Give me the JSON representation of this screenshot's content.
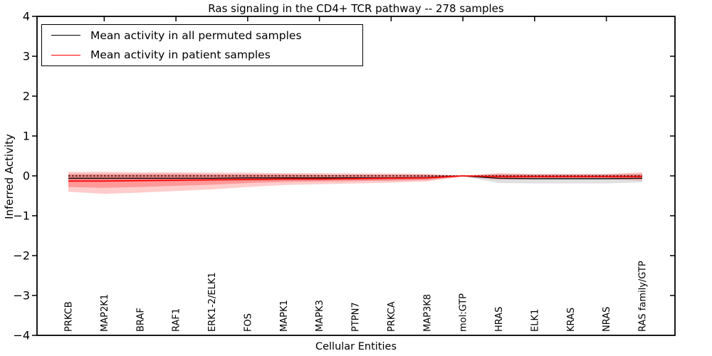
{
  "title": "Ras signaling in the CD4+ TCR pathway -- 278 samples",
  "xlabel": "Cellular Entities",
  "ylabel": "Inferred Activity",
  "legend": [
    {
      "label": "Mean activity in all permuted samples",
      "color": "#000000",
      "line_height": 1.4
    },
    {
      "label": "Mean activity in patient samples",
      "color": "#ff0000",
      "line_height": 1.7
    }
  ],
  "colors": {
    "axis": "#000000",
    "permuted_band": "#999999",
    "patient_band": "#ff0000",
    "permuted_line": "#000000",
    "patient_line": "#ff0000",
    "zero_line": "#000000"
  },
  "chart_data": {
    "type": "line",
    "title": "Ras signaling in the CD4+ TCR pathway -- 278 samples",
    "xlabel": "Cellular Entities",
    "ylabel": "Inferred Activity",
    "ylim": [
      -4,
      4
    ],
    "yticks": [
      4,
      3,
      2,
      1,
      0,
      -1,
      -2,
      -3,
      -4
    ],
    "ytick_labels": [
      "4",
      "3",
      "2",
      "1",
      "0",
      "−1",
      "−2",
      "−3",
      "−4"
    ],
    "grid": false,
    "legend_position": "upper left",
    "categories": [
      "PRKCB",
      "MAP2K1",
      "BRAF",
      "RAF1",
      "ERK1-2/ELK1",
      "FOS",
      "MAPK1",
      "MAPK3",
      "PTPN7",
      "PRKCA",
      "MAP3K8",
      "mol:GTP",
      "HRAS",
      "ELK1",
      "KRAS",
      "NRAS",
      "RAS family/GTP"
    ],
    "series": [
      {
        "name": "zero-reference",
        "style": "dashed",
        "color": "#000000",
        "width": 1.2,
        "values": [
          0,
          0,
          0,
          0,
          0,
          0,
          0,
          0,
          0,
          0,
          0,
          0,
          0,
          0,
          0,
          0,
          0
        ]
      },
      {
        "name": "Mean activity in all permuted samples",
        "style": "solid",
        "color": "#000000",
        "width": 1.3,
        "values": [
          -0.06,
          -0.06,
          -0.06,
          -0.06,
          -0.06,
          -0.05,
          -0.05,
          -0.05,
          -0.05,
          -0.05,
          -0.04,
          0.0,
          -0.06,
          -0.07,
          -0.07,
          -0.07,
          -0.06
        ]
      },
      {
        "name": "Mean activity in patient samples",
        "style": "solid",
        "color": "#ff0000",
        "width": 1.6,
        "values": [
          -0.13,
          -0.13,
          -0.12,
          -0.11,
          -0.1,
          -0.09,
          -0.08,
          -0.08,
          -0.07,
          -0.06,
          -0.05,
          0.0,
          -0.02,
          -0.02,
          -0.02,
          -0.02,
          -0.02
        ]
      }
    ],
    "bands": [
      {
        "name": "permuted-samples-range",
        "color": "#999999",
        "opacity": 0.3,
        "upper": [
          0.03,
          0.03,
          0.03,
          0.03,
          0.03,
          0.03,
          0.03,
          0.03,
          0.03,
          0.03,
          0.03,
          0.005,
          0.04,
          0.04,
          0.04,
          0.04,
          0.04
        ],
        "lower": [
          -0.15,
          -0.15,
          -0.14,
          -0.14,
          -0.13,
          -0.13,
          -0.12,
          -0.12,
          -0.11,
          -0.11,
          -0.1,
          -0.01,
          -0.18,
          -0.19,
          -0.19,
          -0.19,
          -0.16
        ]
      },
      {
        "name": "patient-samples-range-outer",
        "color": "#ff0000",
        "opacity": 0.2,
        "upper": [
          0.1,
          0.1,
          0.09,
          0.09,
          0.08,
          0.08,
          0.07,
          0.07,
          0.06,
          0.06,
          0.05,
          0.01,
          0.07,
          0.05,
          0.05,
          0.05,
          0.09
        ],
        "lower": [
          -0.4,
          -0.45,
          -0.42,
          -0.38,
          -0.34,
          -0.28,
          -0.23,
          -0.21,
          -0.19,
          -0.17,
          -0.14,
          -0.02,
          -0.1,
          -0.08,
          -0.08,
          -0.08,
          -0.12
        ]
      },
      {
        "name": "patient-samples-range-inner",
        "color": "#ff0000",
        "opacity": 0.25,
        "upper": [
          0.05,
          0.05,
          0.05,
          0.05,
          0.04,
          0.04,
          0.04,
          0.03,
          0.03,
          0.03,
          0.03,
          0.005,
          0.04,
          0.03,
          0.03,
          0.03,
          0.05
        ],
        "lower": [
          -0.28,
          -0.3,
          -0.28,
          -0.25,
          -0.22,
          -0.18,
          -0.15,
          -0.14,
          -0.13,
          -0.12,
          -0.1,
          -0.015,
          -0.06,
          -0.05,
          -0.05,
          -0.05,
          -0.08
        ]
      }
    ],
    "top_tick_indices": [
      1,
      3,
      5,
      7,
      9,
      11,
      13,
      15
    ],
    "right_tick_values": [
      3,
      2,
      1,
      0,
      -1,
      -2,
      -3
    ]
  }
}
